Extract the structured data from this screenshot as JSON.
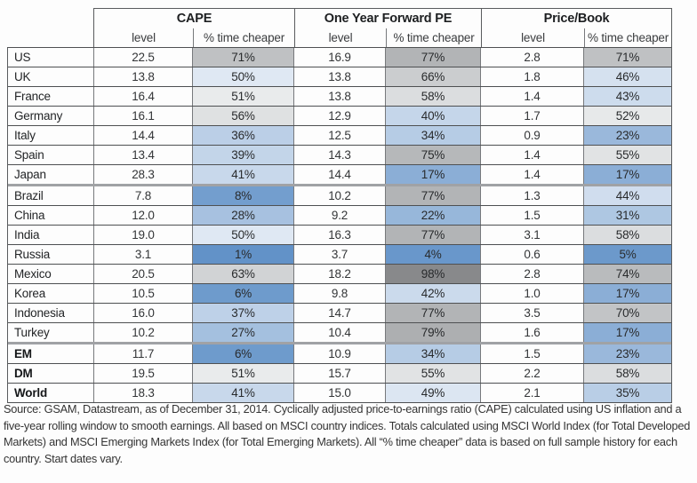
{
  "table": {
    "groups": [
      {
        "label": "CAPE"
      },
      {
        "label": "One Year Forward PE"
      },
      {
        "label": "Price/Book"
      }
    ],
    "subheaders": {
      "level": "level",
      "pct": "% time cheaper"
    },
    "rows": [
      {
        "country": "US",
        "bold": false,
        "thick_below": false,
        "cape_level": "22.5",
        "cape_pct": 71,
        "fwd_level": "16.9",
        "fwd_pct": 77,
        "pb_level": "2.8",
        "pb_pct": 71
      },
      {
        "country": "UK",
        "bold": false,
        "thick_below": false,
        "cape_level": "13.8",
        "cape_pct": 50,
        "fwd_level": "13.8",
        "fwd_pct": 66,
        "pb_level": "1.8",
        "pb_pct": 46
      },
      {
        "country": "France",
        "bold": false,
        "thick_below": false,
        "cape_level": "16.4",
        "cape_pct": 51,
        "fwd_level": "13.8",
        "fwd_pct": 58,
        "pb_level": "1.4",
        "pb_pct": 43
      },
      {
        "country": "Germany",
        "bold": false,
        "thick_below": false,
        "cape_level": "16.1",
        "cape_pct": 56,
        "fwd_level": "12.9",
        "fwd_pct": 40,
        "pb_level": "1.7",
        "pb_pct": 52
      },
      {
        "country": "Italy",
        "bold": false,
        "thick_below": false,
        "cape_level": "14.4",
        "cape_pct": 36,
        "fwd_level": "12.5",
        "fwd_pct": 34,
        "pb_level": "0.9",
        "pb_pct": 23
      },
      {
        "country": "Spain",
        "bold": false,
        "thick_below": false,
        "cape_level": "13.4",
        "cape_pct": 39,
        "fwd_level": "14.3",
        "fwd_pct": 75,
        "pb_level": "1.4",
        "pb_pct": 55
      },
      {
        "country": "Japan",
        "bold": false,
        "thick_below": true,
        "cape_level": "28.3",
        "cape_pct": 41,
        "fwd_level": "14.4",
        "fwd_pct": 17,
        "pb_level": "1.4",
        "pb_pct": 17
      },
      {
        "country": "Brazil",
        "bold": false,
        "thick_below": false,
        "cape_level": "7.8",
        "cape_pct": 8,
        "fwd_level": "10.2",
        "fwd_pct": 77,
        "pb_level": "1.3",
        "pb_pct": 44
      },
      {
        "country": "China",
        "bold": false,
        "thick_below": false,
        "cape_level": "12.0",
        "cape_pct": 28,
        "fwd_level": "9.2",
        "fwd_pct": 22,
        "pb_level": "1.5",
        "pb_pct": 31
      },
      {
        "country": "India",
        "bold": false,
        "thick_below": false,
        "cape_level": "19.0",
        "cape_pct": 50,
        "fwd_level": "16.3",
        "fwd_pct": 77,
        "pb_level": "3.1",
        "pb_pct": 58
      },
      {
        "country": "Russia",
        "bold": false,
        "thick_below": false,
        "cape_level": "3.1",
        "cape_pct": 1,
        "fwd_level": "3.7",
        "fwd_pct": 4,
        "pb_level": "0.6",
        "pb_pct": 5
      },
      {
        "country": "Mexico",
        "bold": false,
        "thick_below": false,
        "cape_level": "20.5",
        "cape_pct": 63,
        "fwd_level": "18.2",
        "fwd_pct": 98,
        "pb_level": "2.8",
        "pb_pct": 74
      },
      {
        "country": "Korea",
        "bold": false,
        "thick_below": false,
        "cape_level": "10.5",
        "cape_pct": 6,
        "fwd_level": "9.8",
        "fwd_pct": 42,
        "pb_level": "1.0",
        "pb_pct": 17
      },
      {
        "country": "Indonesia",
        "bold": false,
        "thick_below": false,
        "cape_level": "16.0",
        "cape_pct": 37,
        "fwd_level": "14.7",
        "fwd_pct": 77,
        "pb_level": "3.5",
        "pb_pct": 70
      },
      {
        "country": "Turkey",
        "bold": false,
        "thick_below": true,
        "cape_level": "10.2",
        "cape_pct": 27,
        "fwd_level": "10.4",
        "fwd_pct": 79,
        "pb_level": "1.6",
        "pb_pct": 17
      },
      {
        "country": "EM",
        "bold": true,
        "thick_below": false,
        "cape_level": "11.7",
        "cape_pct": 6,
        "fwd_level": "10.9",
        "fwd_pct": 34,
        "pb_level": "1.5",
        "pb_pct": 23
      },
      {
        "country": "DM",
        "bold": true,
        "thick_below": false,
        "cape_level": "19.5",
        "cape_pct": 51,
        "fwd_level": "15.7",
        "fwd_pct": 55,
        "pb_level": "2.2",
        "pb_pct": 58
      },
      {
        "country": "World",
        "bold": true,
        "thick_below": false,
        "cape_level": "18.3",
        "cape_pct": 41,
        "fwd_level": "15.0",
        "fwd_pct": 49,
        "pb_level": "2.1",
        "pb_pct": 35
      }
    ],
    "pct_suffix": "%"
  },
  "heatmap": {
    "low_stops": [
      [
        0,
        "#5f90c7"
      ],
      [
        50,
        "#dfe8f3"
      ]
    ],
    "high_stops": [
      [
        51,
        "#e9ebec"
      ],
      [
        65,
        "#cdcfd1"
      ],
      [
        80,
        "#abadaf"
      ],
      [
        98,
        "#88898b"
      ]
    ]
  },
  "source_note": "Source: GSAM, Datastream, as of December 31, 2014. Cyclically adjusted price-to-earnings ratio (CAPE) calculated using US inflation and a five-year rolling window to smooth earnings. All based on MSCI country indices. Totals calculated using MSCI World Index (for Total Developed Markets) and MSCI Emerging Markets Index (for Total Emerging Markets). All “% time cheaper” data is based on full sample history for each country. Start dates vary.",
  "chart_data": {
    "type": "heatmap",
    "title": "",
    "column_groups": [
      {
        "label": "CAPE",
        "columns": [
          "level",
          "% time cheaper"
        ]
      },
      {
        "label": "One Year Forward PE",
        "columns": [
          "level",
          "% time cheaper"
        ]
      },
      {
        "label": "Price/Book",
        "columns": [
          "level",
          "% time cheaper"
        ]
      }
    ],
    "rows": [
      "US",
      "UK",
      "France",
      "Germany",
      "Italy",
      "Spain",
      "Japan",
      "Brazil",
      "China",
      "India",
      "Russia",
      "Mexico",
      "Korea",
      "Indonesia",
      "Turkey",
      "EM",
      "DM",
      "World"
    ],
    "values": [
      [
        22.5,
        71,
        16.9,
        77,
        2.8,
        71
      ],
      [
        13.8,
        50,
        13.8,
        66,
        1.8,
        46
      ],
      [
        16.4,
        51,
        13.8,
        58,
        1.4,
        43
      ],
      [
        16.1,
        56,
        12.9,
        40,
        1.7,
        52
      ],
      [
        14.4,
        36,
        12.5,
        34,
        0.9,
        23
      ],
      [
        13.4,
        39,
        14.3,
        75,
        1.4,
        55
      ],
      [
        28.3,
        41,
        14.4,
        17,
        1.4,
        17
      ],
      [
        7.8,
        8,
        10.2,
        77,
        1.3,
        44
      ],
      [
        12.0,
        28,
        9.2,
        22,
        1.5,
        31
      ],
      [
        19.0,
        50,
        16.3,
        77,
        3.1,
        58
      ],
      [
        3.1,
        1,
        3.7,
        4,
        0.6,
        5
      ],
      [
        20.5,
        63,
        18.2,
        98,
        2.8,
        74
      ],
      [
        10.5,
        6,
        9.8,
        42,
        1.0,
        17
      ],
      [
        16.0,
        37,
        14.7,
        77,
        3.5,
        70
      ],
      [
        10.2,
        27,
        10.4,
        79,
        1.6,
        17
      ],
      [
        11.7,
        6,
        10.9,
        34,
        1.5,
        23
      ],
      [
        19.5,
        51,
        15.7,
        55,
        2.2,
        58
      ],
      [
        18.3,
        41,
        15.0,
        49,
        2.1,
        35
      ]
    ],
    "legend_position": "none",
    "grid": true,
    "color_encoding": "% time cheaper cells: low % = blue, ~50% = pale, high % = gray/dark gray",
    "note": "Source: GSAM, Datastream, as of December 31, 2014. Cyclically adjusted price-to-earnings ratio (CAPE) calculated using US inflation and a five-year rolling window to smooth earnings. All based on MSCI country indices. Totals calculated using MSCI World Index (for Total Developed Markets) and MSCI Emerging Markets Index (for Total Emerging Markets). All “% time cheaper” data is based on full sample history for each country. Start dates vary."
  }
}
